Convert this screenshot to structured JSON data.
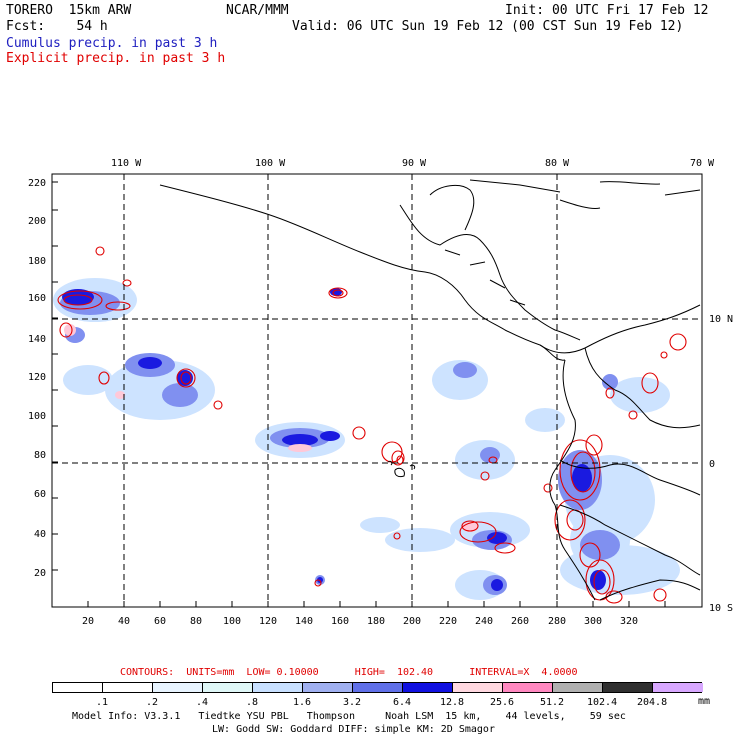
{
  "header": {
    "model": "TORERO  15km ARW",
    "fcst": "Fcst:    54 h",
    "center": "NCAR/MMM",
    "init": "Init: 00 UTC Fri 17 Feb 12",
    "valid": "Valid: 06 UTC Sun 19 Feb 12 (00 CST Sun 19 Feb 12)"
  },
  "legend": {
    "cumulus": "Cumulus precip. in past 3 h",
    "cumulus_color": "#2020c0",
    "explicit": "Explicit precip. in past 3 h",
    "explicit_color": "#e00000"
  },
  "map": {
    "lon_labels": [
      "110 W",
      "100 W",
      "90 W",
      "80 W",
      "70 W"
    ],
    "lat_labels": [
      "10 N",
      "0",
      "10 S"
    ],
    "x_ticks": [
      "20",
      "40",
      "60",
      "80",
      "100",
      "120",
      "140",
      "160",
      "180",
      "200",
      "220",
      "240",
      "260",
      "280",
      "300",
      "320"
    ],
    "y_ticks": [
      "220",
      "200",
      "180",
      "160",
      "140",
      "120",
      "100",
      "80",
      "60",
      "40",
      "20"
    ]
  },
  "contours": {
    "label": "CONTOURS:  UNITS=mm  LOW= 0.10000      HIGH=  102.40      INTERVAL=X  4.0000",
    "color": "#e00000"
  },
  "colorbar": {
    "labels": [
      ".1",
      ".2",
      ".4",
      ".8",
      "1.6",
      "3.2",
      "6.4",
      "12.8",
      "25.6",
      "51.2",
      "102.4",
      "204.8"
    ],
    "unit": "mm",
    "colors": [
      "#ffffff",
      "#ffffff",
      "#e8f4ff",
      "#dff7f7",
      "#c8e0ff",
      "#a0b0f0",
      "#6070e8",
      "#1010e0",
      "#ffd8e0",
      "#ff88c0",
      "#b0b0b0",
      "#303030",
      "#d8a8ff"
    ]
  },
  "footer": {
    "line1": "Model Info: V3.3.1   Tiedtke YSU PBL   Thompson     Noah LSM  15 km,    44 levels,    59 sec",
    "line2": "LW: Godd SW: Goddard DIFF: simple KM: 2D Smagor"
  }
}
